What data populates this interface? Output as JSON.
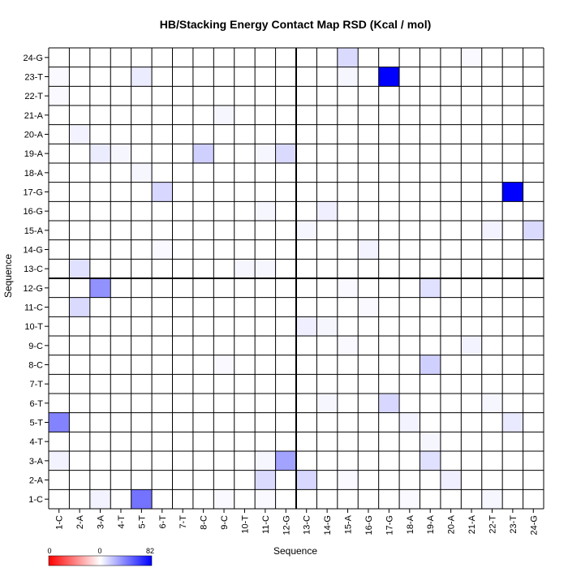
{
  "chart_data": {
    "type": "heatmap",
    "title": "HB/Stacking Energy Contact Map RSD (Kcal / mol)",
    "xlabel": "Sequence",
    "ylabel": "Sequence",
    "x_labels": [
      "1-C",
      "2-A",
      "3-A",
      "4-T",
      "5-T",
      "6-T",
      "7-T",
      "8-C",
      "9-C",
      "10-T",
      "11-C",
      "12-G",
      "13-C",
      "14-G",
      "15-A",
      "16-G",
      "17-G",
      "18-A",
      "19-A",
      "20-A",
      "21-A",
      "22-T",
      "23-T",
      "24-G"
    ],
    "y_labels": [
      "1-C",
      "2-A",
      "3-A",
      "4-T",
      "5-T",
      "6-T",
      "7-T",
      "8-C",
      "9-C",
      "10-T",
      "11-C",
      "12-G",
      "13-C",
      "14-G",
      "15-A",
      "16-G",
      "17-G",
      "18-A",
      "19-A",
      "20-A",
      "21-A",
      "22-T",
      "23-T",
      "24-G"
    ],
    "cells": [
      {
        "row": "1-C",
        "col": "3-A",
        "value": 4
      },
      {
        "row": "1-C",
        "col": "5-T",
        "value": 45
      },
      {
        "row": "1-C",
        "col": "9-C",
        "value": 2
      },
      {
        "row": "1-C",
        "col": "11-C",
        "value": 2
      },
      {
        "row": "1-C",
        "col": "18-A",
        "value": 2
      },
      {
        "row": "1-C",
        "col": "22-T",
        "value": 3
      },
      {
        "row": "2-A",
        "col": "11-C",
        "value": 12
      },
      {
        "row": "2-A",
        "col": "13-C",
        "value": 13
      },
      {
        "row": "2-A",
        "col": "20-A",
        "value": 5
      },
      {
        "row": "2-A",
        "col": "15-A",
        "value": 2
      },
      {
        "row": "3-A",
        "col": "1-C",
        "value": 4
      },
      {
        "row": "3-A",
        "col": "12-G",
        "value": 30
      },
      {
        "row": "3-A",
        "col": "19-A",
        "value": 10
      },
      {
        "row": "3-A",
        "col": "11-C",
        "value": 3
      },
      {
        "row": "4-T",
        "col": "19-A",
        "value": 3
      },
      {
        "row": "5-T",
        "col": "1-C",
        "value": 40
      },
      {
        "row": "5-T",
        "col": "18-A",
        "value": 4
      },
      {
        "row": "5-T",
        "col": "23-T",
        "value": 7
      },
      {
        "row": "6-T",
        "col": "17-G",
        "value": 13
      },
      {
        "row": "6-T",
        "col": "14-G",
        "value": 3
      },
      {
        "row": "6-T",
        "col": "22-T",
        "value": 3
      },
      {
        "row": "8-C",
        "col": "19-A",
        "value": 15
      },
      {
        "row": "8-C",
        "col": "9-C",
        "value": 2
      },
      {
        "row": "9-C",
        "col": "21-A",
        "value": 4
      },
      {
        "row": "9-C",
        "col": "15-A",
        "value": 2
      },
      {
        "row": "10-T",
        "col": "13-C",
        "value": 5
      },
      {
        "row": "10-T",
        "col": "14-G",
        "value": 3
      },
      {
        "row": "11-C",
        "col": "2-A",
        "value": 12
      },
      {
        "row": "11-C",
        "col": "16-G",
        "value": 2
      },
      {
        "row": "12-G",
        "col": "3-A",
        "value": 35
      },
      {
        "row": "12-G",
        "col": "19-A",
        "value": 10
      },
      {
        "row": "12-G",
        "col": "15-A",
        "value": 2
      },
      {
        "row": "13-C",
        "col": "2-A",
        "value": 10
      },
      {
        "row": "13-C",
        "col": "10-T",
        "value": 3
      },
      {
        "row": "13-C",
        "col": "11-C",
        "value": 3
      },
      {
        "row": "14-G",
        "col": "16-G",
        "value": 4
      },
      {
        "row": "14-G",
        "col": "6-T",
        "value": 2
      },
      {
        "row": "15-A",
        "col": "24-G",
        "value": 12
      },
      {
        "row": "15-A",
        "col": "22-T",
        "value": 4
      },
      {
        "row": "15-A",
        "col": "13-C",
        "value": 3
      },
      {
        "row": "16-G",
        "col": "14-G",
        "value": 5
      },
      {
        "row": "16-G",
        "col": "11-C",
        "value": 3
      },
      {
        "row": "17-G",
        "col": "6-T",
        "value": 13
      },
      {
        "row": "17-G",
        "col": "23-T",
        "value": 82
      },
      {
        "row": "18-A",
        "col": "5-T",
        "value": 3
      },
      {
        "row": "19-A",
        "col": "8-C",
        "value": 15
      },
      {
        "row": "19-A",
        "col": "12-G",
        "value": 12
      },
      {
        "row": "19-A",
        "col": "3-A",
        "value": 6
      },
      {
        "row": "19-A",
        "col": "11-C",
        "value": 3
      },
      {
        "row": "19-A",
        "col": "4-T",
        "value": 3
      },
      {
        "row": "20-A",
        "col": "2-A",
        "value": 4
      },
      {
        "row": "21-A",
        "col": "9-C",
        "value": 3
      },
      {
        "row": "22-T",
        "col": "1-C",
        "value": 2
      },
      {
        "row": "23-T",
        "col": "5-T",
        "value": 6
      },
      {
        "row": "23-T",
        "col": "17-G",
        "value": 82
      },
      {
        "row": "23-T",
        "col": "15-A",
        "value": 3
      },
      {
        "row": "23-T",
        "col": "1-C",
        "value": 2
      },
      {
        "row": "24-G",
        "col": "15-A",
        "value": 12
      },
      {
        "row": "24-G",
        "col": "21-A",
        "value": 2
      }
    ],
    "colorbar": {
      "ticks": [
        "0",
        "0",
        "82"
      ],
      "low_color": "#ff0000",
      "mid_color": "#ffffff",
      "high_color": "#0000ff",
      "min": -82,
      "max": 82
    },
    "divider_after_index": 12,
    "grid": true,
    "legend": "bottom-left"
  }
}
